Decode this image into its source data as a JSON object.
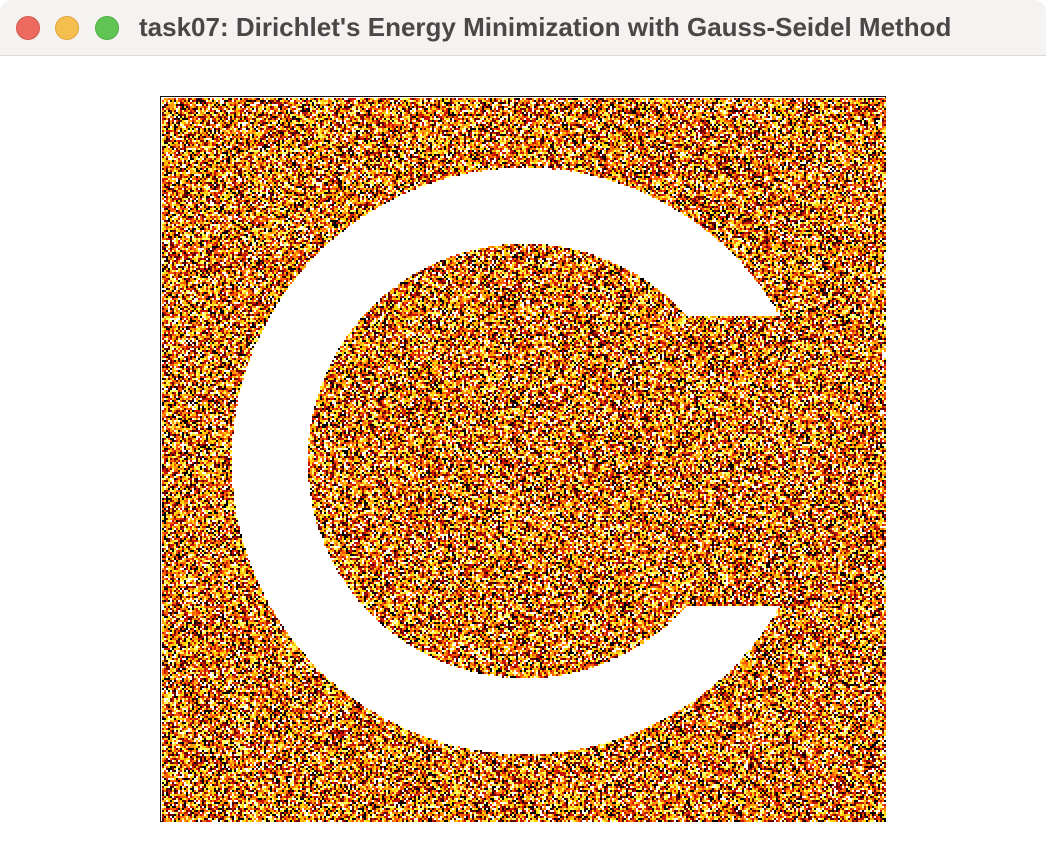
{
  "window": {
    "title": "task07: Dirichlet's Energy Minimization with Gauss-Seidel Method",
    "buttons": {
      "close_color": "#ed6a5e",
      "minimize_color": "#f5bf4f",
      "maximize_color": "#61c554"
    }
  },
  "visualization": {
    "description_icon": "noise-field-with-c-shaped-boundary",
    "colormap": [
      "#000000",
      "#6b0000",
      "#c81400",
      "#ff5a00",
      "#ff9a00",
      "#ffd200",
      "#ffff66",
      "#ffffff"
    ],
    "boundary_color": "#ffffff",
    "frame_color": "#111111"
  }
}
